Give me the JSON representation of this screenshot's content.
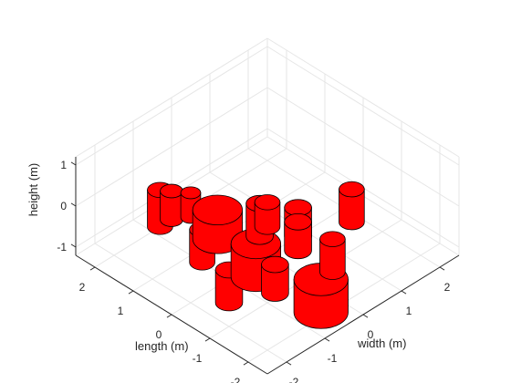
{
  "chart_data": {
    "type": "3d-bar",
    "mark_shape": "cylinder",
    "colors": {
      "fill": "#ff0000",
      "edge": "#000000",
      "grid": "#e6e6e6",
      "axis": "#262626"
    },
    "grid": true,
    "xlabel": "width (m)",
    "ylabel": "length (m)",
    "zlabel": "height (m)",
    "xlim": [
      -2.5,
      2.5
    ],
    "ylim": [
      -2.5,
      2.5
    ],
    "zlim": [
      -1.2,
      1.2
    ],
    "x_ticks": [
      "-2",
      "-1",
      "0",
      "1",
      "2"
    ],
    "y_ticks": [
      "-2",
      "-1",
      "0",
      "1",
      "2"
    ],
    "z_ticks": [
      "-1",
      "0",
      "1"
    ],
    "cylinders": [
      {
        "x": -0.8,
        "y": 2.0,
        "radius": 0.28,
        "height": 0.9
      },
      {
        "x": -0.5,
        "y": 2.0,
        "radius": 0.25,
        "height": 0.7
      },
      {
        "x": -0.2,
        "y": 1.8,
        "radius": 0.22,
        "height": 0.6
      },
      {
        "x": -1.0,
        "y": 0.7,
        "radius": 0.28,
        "height": 0.8
      },
      {
        "x": -0.3,
        "y": 1.0,
        "radius": 0.55,
        "height": 0.7
      },
      {
        "x": 0.3,
        "y": 0.5,
        "radius": 0.3,
        "height": 0.8
      },
      {
        "x": 0.6,
        "y": 0.6,
        "radius": 0.28,
        "height": 0.6
      },
      {
        "x": 0.8,
        "y": 0.0,
        "radius": 0.3,
        "height": 0.7
      },
      {
        "x": 0.5,
        "y": -0.3,
        "radius": 0.3,
        "height": 0.7
      },
      {
        "x": -0.6,
        "y": -0.3,
        "radius": 0.55,
        "height": 0.8
      },
      {
        "x": -1.5,
        "y": -0.5,
        "radius": 0.3,
        "height": 0.8
      },
      {
        "x": -0.7,
        "y": -0.9,
        "radius": 0.3,
        "height": 0.7
      },
      {
        "x": 0.5,
        "y": -1.2,
        "radius": 0.28,
        "height": 0.8
      },
      {
        "x": 1.8,
        "y": -0.4,
        "radius": 0.28,
        "height": 0.8
      },
      {
        "x": -0.5,
        "y": -1.9,
        "radius": 0.6,
        "height": 0.8
      }
    ]
  }
}
